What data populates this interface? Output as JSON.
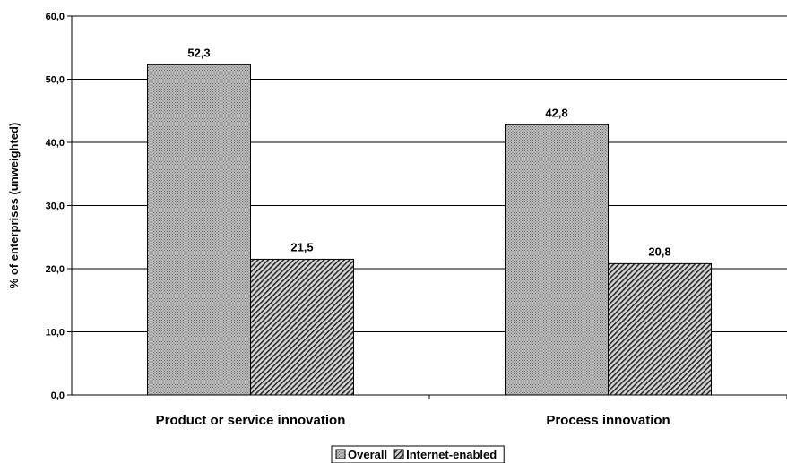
{
  "chart_data": {
    "type": "bar",
    "categories": [
      "Product or service innovation",
      "Process innovation"
    ],
    "series": [
      {
        "name": "Overall",
        "values": [
          52.3,
          42.8
        ],
        "value_labels": [
          "52,3",
          "42,8"
        ],
        "pattern": "dots"
      },
      {
        "name": "Internet-enabled",
        "values": [
          21.5,
          20.8
        ],
        "value_labels": [
          "21,5",
          "20,8"
        ],
        "pattern": "hatch"
      }
    ],
    "ylabel": "% of enterprises (unweighted)",
    "ylim": [
      0,
      60
    ],
    "yticks": [
      0,
      10,
      20,
      30,
      40,
      50,
      60
    ],
    "ytick_labels": [
      "0,0",
      "10,0",
      "20,0",
      "30,0",
      "40,0",
      "50,0",
      "60,0"
    ],
    "grid": true,
    "legend": "bottom-center",
    "colors": {
      "bar_fill": "#a0a0a0",
      "bar_stroke": "#000000",
      "grid": "#000000"
    }
  }
}
